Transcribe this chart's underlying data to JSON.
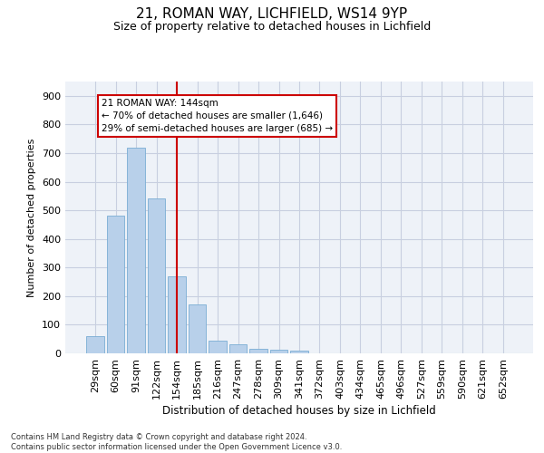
{
  "title1": "21, ROMAN WAY, LICHFIELD, WS14 9YP",
  "title2": "Size of property relative to detached houses in Lichfield",
  "xlabel": "Distribution of detached houses by size in Lichfield",
  "ylabel": "Number of detached properties",
  "categories": [
    "29sqm",
    "60sqm",
    "91sqm",
    "122sqm",
    "154sqm",
    "185sqm",
    "216sqm",
    "247sqm",
    "278sqm",
    "309sqm",
    "341sqm",
    "372sqm",
    "403sqm",
    "434sqm",
    "465sqm",
    "496sqm",
    "527sqm",
    "559sqm",
    "590sqm",
    "621sqm",
    "652sqm"
  ],
  "values": [
    60,
    480,
    720,
    543,
    270,
    172,
    45,
    32,
    15,
    13,
    8,
    0,
    0,
    0,
    0,
    0,
    0,
    0,
    0,
    0,
    0
  ],
  "bar_color": "#b8d0ea",
  "bar_edge_color": "#7aadd4",
  "vline_x": 4,
  "vline_color": "#cc0000",
  "annotation_text": "21 ROMAN WAY: 144sqm\n← 70% of detached houses are smaller (1,646)\n29% of semi-detached houses are larger (685) →",
  "annotation_box_color": "#ffffff",
  "annotation_box_edge": "#cc0000",
  "ylim": [
    0,
    950
  ],
  "yticks": [
    0,
    100,
    200,
    300,
    400,
    500,
    600,
    700,
    800,
    900
  ],
  "footer": "Contains HM Land Registry data © Crown copyright and database right 2024.\nContains public sector information licensed under the Open Government Licence v3.0.",
  "background_color": "#eef2f8",
  "grid_color": "#c8cfe0",
  "title1_fontsize": 11,
  "title2_fontsize": 9
}
